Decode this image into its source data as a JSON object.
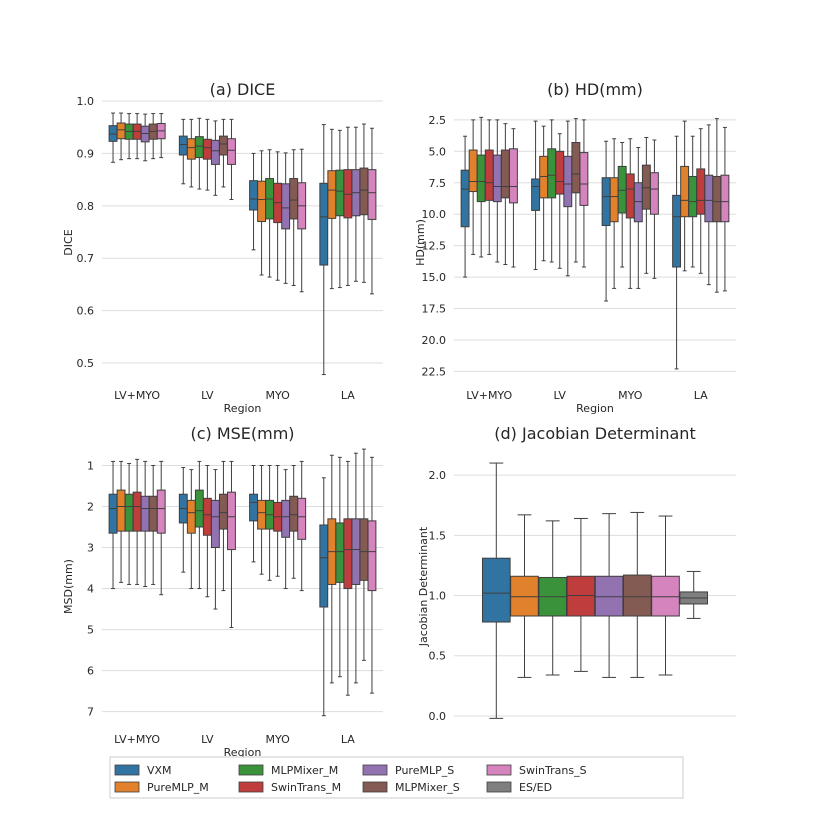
{
  "legend": {
    "entries": [
      {
        "label": "VXM",
        "color": "#3274a1"
      },
      {
        "label": "PureMLP_M",
        "color": "#e1812c"
      },
      {
        "label": "MLPMixer_M",
        "color": "#3a923a"
      },
      {
        "label": "SwinTrans_M",
        "color": "#c03d3e"
      },
      {
        "label": "PureMLP_S",
        "color": "#9372b2"
      },
      {
        "label": "MLPMixer_S",
        "color": "#845b53"
      },
      {
        "label": "SwinTrans_S",
        "color": "#d684bd"
      },
      {
        "label": "ES/ED",
        "color": "#7f7f7f"
      }
    ]
  },
  "chart_data": [
    {
      "type": "box",
      "title": "(a) DICE",
      "xlabel": "Region",
      "ylabel": "DICE",
      "ylim": [
        0.46,
        1.0
      ],
      "inverted": false,
      "yticks": [
        0.5,
        0.6,
        0.7,
        0.8,
        0.9,
        1.0
      ],
      "ytick_labels": [
        "0.5",
        "0.6",
        "0.7",
        "0.8",
        "0.9",
        "1.0"
      ],
      "categories": [
        "LV+MYO",
        "LV",
        "MYO",
        "LA"
      ],
      "series_names": [
        "VXM",
        "PureMLP_M",
        "MLPMixer_M",
        "SwinTrans_M",
        "PureMLP_S",
        "MLPMixer_S",
        "SwinTrans_S"
      ],
      "boxes": [
        [
          [
            0.883,
            0.923,
            0.937,
            0.953,
            0.977
          ],
          [
            0.888,
            0.928,
            0.945,
            0.958,
            0.977
          ],
          [
            0.89,
            0.927,
            0.942,
            0.956,
            0.976
          ],
          [
            0.89,
            0.927,
            0.942,
            0.956,
            0.976
          ],
          [
            0.886,
            0.922,
            0.938,
            0.952,
            0.975
          ],
          [
            0.89,
            0.927,
            0.942,
            0.956,
            0.976
          ],
          [
            0.892,
            0.928,
            0.943,
            0.957,
            0.976
          ]
        ],
        [
          [
            0.842,
            0.897,
            0.917,
            0.933,
            0.965
          ],
          [
            0.836,
            0.889,
            0.911,
            0.928,
            0.965
          ],
          [
            0.832,
            0.892,
            0.914,
            0.932,
            0.967
          ],
          [
            0.83,
            0.889,
            0.911,
            0.927,
            0.965
          ],
          [
            0.82,
            0.879,
            0.905,
            0.925,
            0.962
          ],
          [
            0.836,
            0.897,
            0.918,
            0.933,
            0.965
          ],
          [
            0.812,
            0.879,
            0.906,
            0.928,
            0.965
          ]
        ],
        [
          [
            0.716,
            0.792,
            0.813,
            0.848,
            0.9
          ],
          [
            0.668,
            0.77,
            0.812,
            0.847,
            0.905
          ],
          [
            0.664,
            0.775,
            0.813,
            0.852,
            0.907
          ],
          [
            0.658,
            0.768,
            0.806,
            0.843,
            0.903
          ],
          [
            0.652,
            0.756,
            0.796,
            0.842,
            0.901
          ],
          [
            0.648,
            0.775,
            0.811,
            0.852,
            0.907
          ],
          [
            0.636,
            0.756,
            0.8,
            0.844,
            0.908
          ]
        ],
        [
          [
            0.478,
            0.687,
            0.779,
            0.843,
            0.955
          ],
          [
            0.642,
            0.776,
            0.83,
            0.867,
            0.946
          ],
          [
            0.644,
            0.781,
            0.828,
            0.868,
            0.944
          ],
          [
            0.648,
            0.777,
            0.822,
            0.869,
            0.95
          ],
          [
            0.656,
            0.781,
            0.825,
            0.869,
            0.95
          ],
          [
            0.654,
            0.783,
            0.83,
            0.872,
            0.956
          ],
          [
            0.632,
            0.774,
            0.825,
            0.869,
            0.948
          ]
        ]
      ]
    },
    {
      "type": "box",
      "title": "(b) HD(mm)",
      "xlabel": "Region",
      "ylabel": "HD(mm)",
      "ylim": [
        1.0,
        23.5
      ],
      "inverted": true,
      "yticks": [
        2.5,
        5.0,
        7.5,
        10.0,
        12.5,
        15.0,
        17.5,
        20.0,
        22.5
      ],
      "ytick_labels": [
        "2.5",
        "5.0",
        "7.5",
        "10.0",
        "12.5",
        "15.0",
        "17.5",
        "20.0",
        "22.5"
      ],
      "categories": [
        "LV+MYO",
        "LV",
        "MYO",
        "LA"
      ],
      "series_names": [
        "VXM",
        "PureMLP_M",
        "MLPMixer_M",
        "SwinTrans_M",
        "PureMLP_S",
        "MLPMixer_S",
        "SwinTrans_S"
      ],
      "boxes": [
        [
          [
            3.8,
            6.5,
            8.0,
            11.0,
            15.0
          ],
          [
            2.5,
            4.9,
            7.4,
            8.2,
            13.2
          ],
          [
            2.3,
            5.3,
            7.4,
            9.0,
            13.4
          ],
          [
            2.5,
            4.9,
            7.5,
            8.9,
            13.2
          ],
          [
            2.5,
            5.3,
            7.8,
            9.0,
            13.8
          ],
          [
            2.8,
            4.9,
            7.8,
            8.7,
            14.0
          ],
          [
            3.2,
            4.8,
            7.8,
            9.1,
            14.2
          ]
        ],
        [
          [
            2.6,
            7.2,
            7.8,
            9.7,
            14.4
          ],
          [
            3.0,
            5.4,
            7.0,
            8.7,
            13.7
          ],
          [
            2.5,
            4.8,
            6.9,
            8.7,
            13.8
          ],
          [
            3.6,
            5.0,
            7.4,
            8.4,
            14.3
          ],
          [
            2.6,
            5.4,
            7.6,
            9.4,
            14.9
          ],
          [
            2.4,
            4.3,
            6.8,
            8.3,
            13.8
          ],
          [
            2.5,
            5.1,
            7.6,
            9.3,
            14.2
          ]
        ],
        [
          [
            4.2,
            7.1,
            8.6,
            10.9,
            16.9
          ],
          [
            4.0,
            7.1,
            8.6,
            10.6,
            15.9
          ],
          [
            4.3,
            6.2,
            8.1,
            9.9,
            14.2
          ],
          [
            4.0,
            6.8,
            8.0,
            10.3,
            15.9
          ],
          [
            4.7,
            7.5,
            9.0,
            10.6,
            15.9
          ],
          [
            3.9,
            6.1,
            7.9,
            9.6,
            14.7
          ],
          [
            4.1,
            6.7,
            8.0,
            10.0,
            15.1
          ]
        ],
        [
          [
            3.8,
            8.5,
            10.2,
            14.2,
            22.3
          ],
          [
            2.6,
            6.2,
            8.9,
            10.2,
            14.5
          ],
          [
            3.8,
            7.0,
            9.0,
            10.2,
            14.2
          ],
          [
            3.2,
            6.4,
            8.9,
            10.0,
            14.7
          ],
          [
            2.9,
            6.9,
            8.9,
            10.6,
            15.6
          ],
          [
            2.4,
            7.0,
            9.0,
            10.6,
            16.2
          ],
          [
            3.1,
            6.9,
            9.0,
            10.6,
            16.1
          ]
        ]
      ]
    },
    {
      "type": "box",
      "title": "(c) MSE(mm)",
      "xlabel": "Region",
      "ylabel": "MSD(mm)",
      "ylim": [
        0.5,
        7.4
      ],
      "inverted": true,
      "yticks": [
        1,
        2,
        3,
        4,
        5,
        6,
        7
      ],
      "ytick_labels": [
        "1",
        "2",
        "3",
        "4",
        "5",
        "6",
        "7"
      ],
      "categories": [
        "LV+MYO",
        "LV",
        "MYO",
        "LA"
      ],
      "series_names": [
        "VXM",
        "PureMLP_M",
        "MLPMixer_M",
        "SwinTrans_M",
        "PureMLP_S",
        "MLPMixer_S",
        "SwinTrans_S"
      ],
      "boxes": [
        [
          [
            0.9,
            1.7,
            2.05,
            2.65,
            4.0
          ],
          [
            0.9,
            1.6,
            2.0,
            2.6,
            3.85
          ],
          [
            0.95,
            1.7,
            2.0,
            2.6,
            3.9
          ],
          [
            0.85,
            1.65,
            2.0,
            2.6,
            3.9
          ],
          [
            0.9,
            1.75,
            2.05,
            2.6,
            3.95
          ],
          [
            1.0,
            1.75,
            2.05,
            2.6,
            3.9
          ],
          [
            0.9,
            1.6,
            2.05,
            2.65,
            4.15
          ]
        ],
        [
          [
            1.05,
            1.7,
            2.05,
            2.4,
            3.6
          ],
          [
            1.1,
            1.85,
            2.15,
            2.65,
            4.0
          ],
          [
            0.9,
            1.6,
            2.1,
            2.5,
            4.0
          ],
          [
            1.0,
            1.8,
            2.2,
            2.7,
            4.2
          ],
          [
            1.1,
            1.85,
            2.25,
            3.0,
            4.5
          ],
          [
            0.9,
            1.7,
            2.15,
            2.55,
            4.05
          ],
          [
            0.9,
            1.65,
            2.25,
            3.05,
            4.95
          ]
        ],
        [
          [
            1.0,
            1.7,
            1.9,
            2.35,
            3.35
          ],
          [
            1.0,
            1.85,
            2.15,
            2.55,
            3.65
          ],
          [
            1.0,
            1.85,
            2.2,
            2.55,
            3.8
          ],
          [
            1.0,
            1.9,
            2.25,
            2.6,
            3.7
          ],
          [
            1.1,
            1.85,
            2.25,
            2.75,
            4.0
          ],
          [
            1.0,
            1.75,
            2.2,
            2.6,
            3.75
          ],
          [
            0.9,
            1.8,
            2.25,
            2.8,
            4.05
          ]
        ],
        [
          [
            1.3,
            2.45,
            3.25,
            4.45,
            7.1
          ],
          [
            0.75,
            2.3,
            3.1,
            3.9,
            6.3
          ],
          [
            0.8,
            2.4,
            3.1,
            3.85,
            6.15
          ],
          [
            0.9,
            2.3,
            3.05,
            4.0,
            6.6
          ],
          [
            0.7,
            2.3,
            3.05,
            3.9,
            6.3
          ],
          [
            0.6,
            2.3,
            3.1,
            3.8,
            5.75
          ],
          [
            0.8,
            2.35,
            3.1,
            4.05,
            6.55
          ]
        ]
      ]
    },
    {
      "type": "box",
      "title": "(d) Jacobian Determinant",
      "xlabel": "",
      "ylabel": "Jacobian Determinant",
      "ylim": [
        -0.1,
        2.25
      ],
      "inverted": false,
      "yticks": [
        0.0,
        0.5,
        1.0,
        1.5,
        2.0
      ],
      "ytick_labels": [
        "0.0",
        "0.5",
        "1.0",
        "1.5",
        "2.0"
      ],
      "categories": [],
      "series_names": [
        "VXM",
        "PureMLP_M",
        "MLPMixer_M",
        "SwinTrans_M",
        "PureMLP_S",
        "MLPMixer_S",
        "SwinTrans_S",
        "ES/ED"
      ],
      "boxes": [
        [
          [
            -0.02,
            0.78,
            1.02,
            1.31,
            2.1
          ],
          [
            0.32,
            0.83,
            0.99,
            1.16,
            1.67
          ],
          [
            0.34,
            0.83,
            0.99,
            1.15,
            1.62
          ],
          [
            0.37,
            0.83,
            1.0,
            1.16,
            1.64
          ],
          [
            0.32,
            0.83,
            0.99,
            1.16,
            1.68
          ],
          [
            0.32,
            0.83,
            0.99,
            1.17,
            1.69
          ],
          [
            0.34,
            0.83,
            0.99,
            1.16,
            1.66
          ],
          [
            0.81,
            0.93,
            0.98,
            1.03,
            1.2
          ]
        ]
      ]
    }
  ]
}
